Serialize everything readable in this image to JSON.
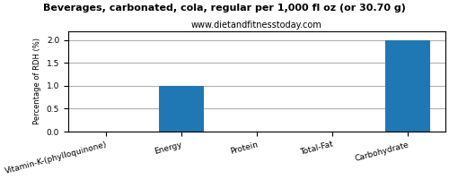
{
  "chart_data": {
    "type": "bar",
    "title": "Beverages, carbonated, cola, regular per 1,000 fl oz (or 30.70 g)",
    "subtitle": "www.dietandfitnesstoday.com",
    "categories": [
      "Vitamin-K-(phylloquinone)",
      "Energy",
      "Protein",
      "Total-Fat",
      "Carbohydrate"
    ],
    "values": [
      0.0,
      1.0,
      0.0,
      0.0,
      2.0
    ],
    "ylabel": "Percentage of RDH (%)",
    "ylim": [
      0,
      2.2
    ],
    "yticks": [
      {
        "value": 0.0,
        "label": "0.0"
      },
      {
        "value": 0.5,
        "label": "0.5"
      },
      {
        "value": 1.0,
        "label": "1.0"
      },
      {
        "value": 1.5,
        "label": "1.5"
      },
      {
        "value": 2.0,
        "label": "2.0"
      }
    ],
    "grid": true
  }
}
